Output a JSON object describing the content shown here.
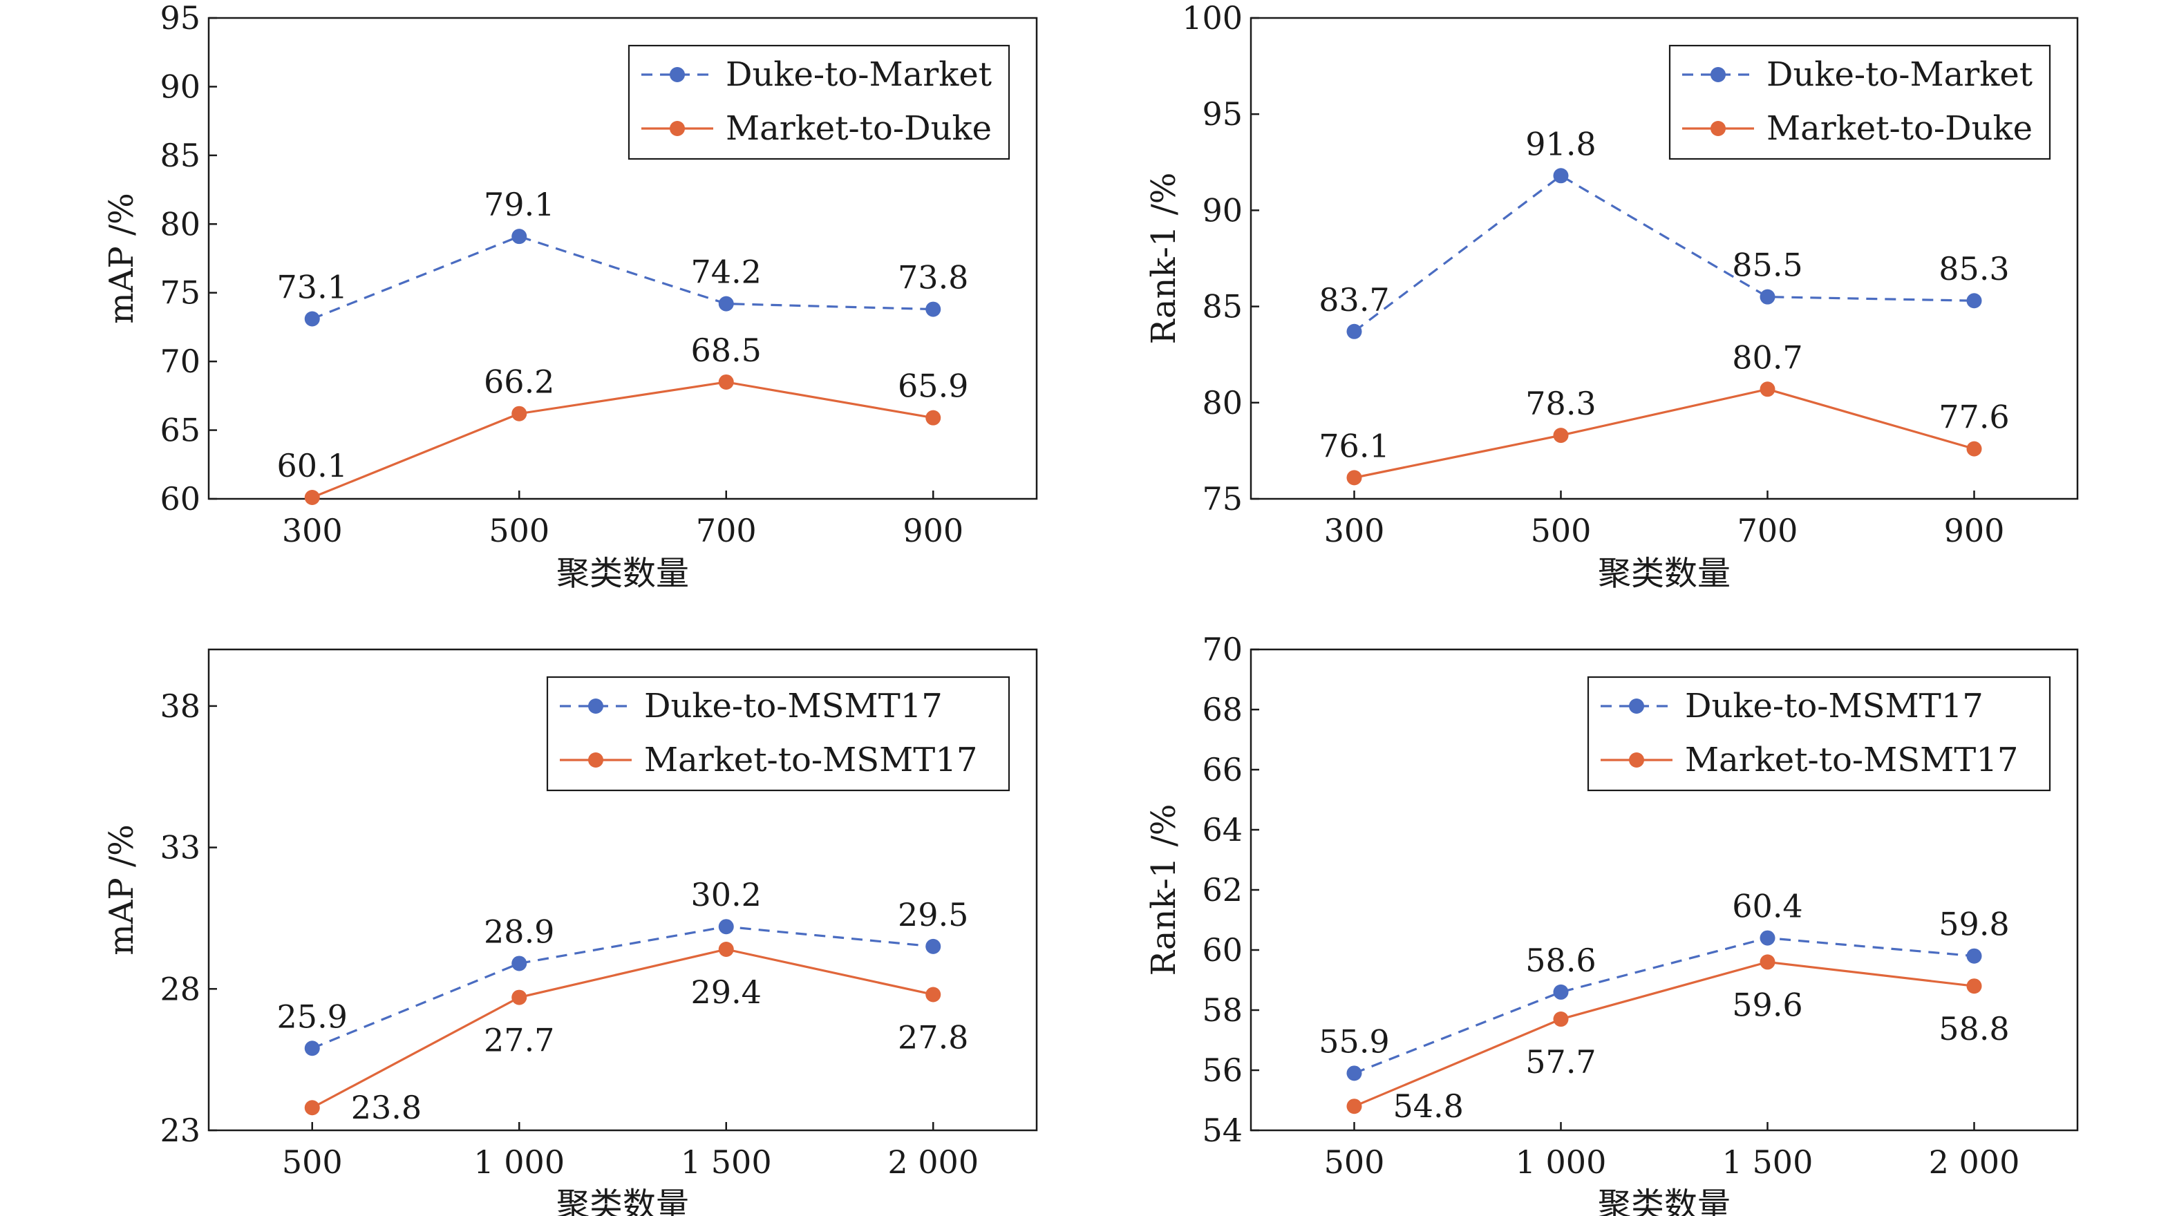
{
  "colors": {
    "blue": "#4a6cc1",
    "orange": "#e0663a"
  },
  "chart_data": [
    {
      "type": "line",
      "xlabel": "聚类数量",
      "ylabel": "mAP /%",
      "categories": [
        "300",
        "500",
        "700",
        "900"
      ],
      "yticks": [
        60,
        65,
        70,
        75,
        80,
        85,
        90,
        95
      ],
      "ylim": [
        60,
        95
      ],
      "grid": true,
      "legend_position": "top-right",
      "series": [
        {
          "name": "Duke-to-Market",
          "color": "blue",
          "dashed": true,
          "values": [
            73.1,
            79.1,
            74.2,
            73.8
          ],
          "labels": [
            "73.1",
            "79.1",
            "74.2",
            "73.8"
          ],
          "label_side": [
            "above",
            "above",
            "above",
            "above"
          ]
        },
        {
          "name": "Market-to-Duke",
          "color": "orange",
          "dashed": false,
          "values": [
            60.1,
            66.2,
            68.5,
            65.9
          ],
          "labels": [
            "60.1",
            "66.2",
            "68.5",
            "65.9"
          ],
          "label_side": [
            "above",
            "above",
            "above",
            "above"
          ]
        }
      ]
    },
    {
      "type": "line",
      "xlabel": "聚类数量",
      "ylabel": "Rank-1 /%",
      "categories": [
        "300",
        "500",
        "700",
        "900"
      ],
      "yticks": [
        75,
        80,
        85,
        90,
        95,
        100
      ],
      "ylim": [
        75,
        100
      ],
      "grid": true,
      "legend_position": "top-right",
      "series": [
        {
          "name": "Duke-to-Market",
          "color": "blue",
          "dashed": true,
          "values": [
            83.7,
            91.8,
            85.5,
            85.3
          ],
          "labels": [
            "83.7",
            "91.8",
            "85.5",
            "85.3"
          ],
          "label_side": [
            "above",
            "above",
            "above",
            "above"
          ]
        },
        {
          "name": "Market-to-Duke",
          "color": "orange",
          "dashed": false,
          "values": [
            76.1,
            78.3,
            80.7,
            77.6
          ],
          "labels": [
            "76.1",
            "78.3",
            "80.7",
            "77.6"
          ],
          "label_side": [
            "above",
            "above",
            "above",
            "above"
          ]
        }
      ]
    },
    {
      "type": "line",
      "xlabel": "聚类数量",
      "ylabel": "mAP /%",
      "categories": [
        "500",
        "1 000",
        "1 500",
        "2 000"
      ],
      "yticks": [
        23,
        28,
        33,
        38
      ],
      "ylim": [
        23,
        40
      ],
      "grid": true,
      "legend_position": "top-right",
      "series": [
        {
          "name": "Duke-to-MSMT17",
          "color": "blue",
          "dashed": true,
          "values": [
            25.9,
            28.9,
            30.2,
            29.5
          ],
          "labels": [
            "25.9",
            "28.9",
            "30.2",
            "29.5"
          ],
          "label_side": [
            "above",
            "above",
            "above",
            "above"
          ]
        },
        {
          "name": "Market-to-MSMT17",
          "color": "orange",
          "dashed": false,
          "values": [
            23.8,
            27.7,
            29.4,
            27.8
          ],
          "labels": [
            "23.8",
            "27.7",
            "29.4",
            "27.8"
          ],
          "label_side": [
            "right",
            "below",
            "below",
            "below"
          ]
        }
      ]
    },
    {
      "type": "line",
      "xlabel": "聚类数量",
      "ylabel": "Rank-1 /%",
      "categories": [
        "500",
        "1 000",
        "1 500",
        "2 000"
      ],
      "yticks": [
        54,
        56,
        58,
        60,
        62,
        64,
        66,
        68,
        70
      ],
      "ylim": [
        54,
        70
      ],
      "grid": true,
      "legend_position": "top-right",
      "series": [
        {
          "name": "Duke-to-MSMT17",
          "color": "blue",
          "dashed": true,
          "values": [
            55.9,
            58.6,
            60.4,
            59.8
          ],
          "labels": [
            "55.9",
            "58.6",
            "60.4",
            "59.8"
          ],
          "label_side": [
            "above",
            "above",
            "above",
            "above"
          ]
        },
        {
          "name": "Market-to-MSMT17",
          "color": "orange",
          "dashed": false,
          "values": [
            54.8,
            57.7,
            59.6,
            58.8
          ],
          "labels": [
            "54.8",
            "57.7",
            "59.6",
            "58.8"
          ],
          "label_side": [
            "right",
            "below",
            "below",
            "below"
          ]
        }
      ]
    }
  ]
}
